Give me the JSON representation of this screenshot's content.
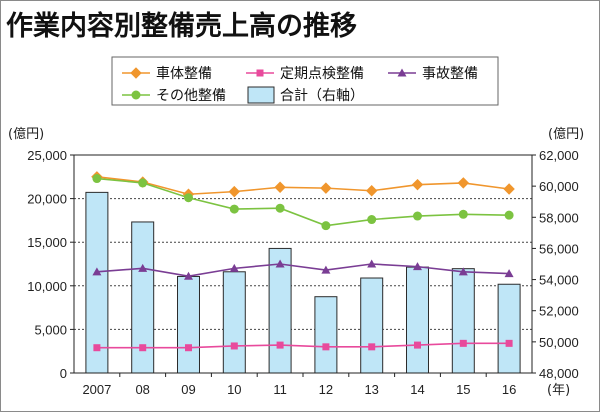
{
  "chart_data": {
    "type": "bar+line",
    "title": "作業内容別整備売上高の推移",
    "categories": [
      "2007",
      "08",
      "09",
      "10",
      "11",
      "12",
      "13",
      "14",
      "15",
      "16"
    ],
    "x_unit": "(年)",
    "left_axis": {
      "unit": "(億円)",
      "range": [
        0,
        25000
      ],
      "ticks": [
        "0",
        "5,000",
        "10,000",
        "15,000",
        "20,000",
        "25,000"
      ],
      "tick_values": [
        0,
        5000,
        10000,
        15000,
        20000,
        25000
      ]
    },
    "right_axis": {
      "unit": "(億円)",
      "range": [
        48000,
        62000
      ],
      "ticks": [
        "48,000",
        "50,000",
        "52,000",
        "54,000",
        "56,000",
        "58,000",
        "60,000",
        "62,000"
      ],
      "tick_values": [
        48000,
        50000,
        52000,
        54000,
        56000,
        58000,
        60000,
        62000
      ]
    },
    "bar_series": {
      "name": "合計（右軸）",
      "axis": "right",
      "color": "#bfe6f7",
      "values": [
        59600,
        57700,
        54200,
        54500,
        56000,
        52900,
        54100,
        54800,
        54700,
        53700
      ]
    },
    "line_series": [
      {
        "name": "車体整備",
        "color": "#f0962d",
        "marker": "diamond",
        "values": [
          22500,
          21900,
          20500,
          20800,
          21300,
          21200,
          20900,
          21600,
          21800,
          21100
        ]
      },
      {
        "name": "定期点検整備",
        "color": "#e84a9c",
        "marker": "square",
        "values": [
          2900,
          2900,
          2900,
          3100,
          3200,
          3000,
          3000,
          3200,
          3400,
          3400
        ]
      },
      {
        "name": "事故整備",
        "color": "#7a3d94",
        "marker": "triangle",
        "values": [
          11600,
          12000,
          11100,
          12000,
          12500,
          11800,
          12500,
          12200,
          11600,
          11400
        ]
      },
      {
        "name": "その他整備",
        "color": "#7cc341",
        "marker": "circle",
        "values": [
          22300,
          21800,
          20100,
          18800,
          18900,
          16900,
          17600,
          18000,
          18200,
          18100
        ]
      }
    ],
    "grid": "horizontal dotted",
    "legend_position": "top"
  }
}
